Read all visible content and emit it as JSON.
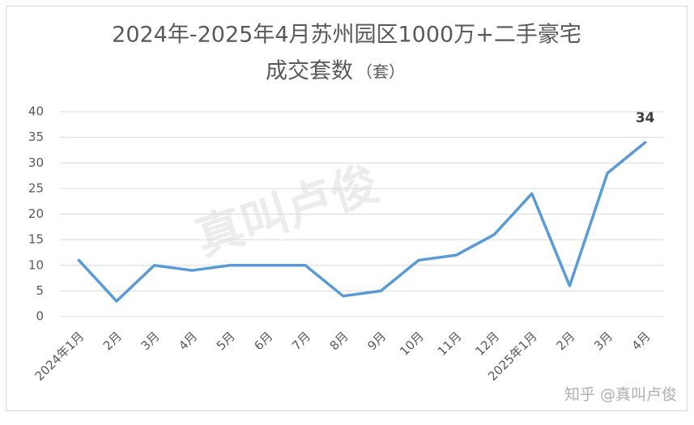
{
  "chart_data": {
    "type": "line",
    "title": "2024年-2025年4月苏州园区1000万+二手豪宅",
    "subtitle": "成交套数",
    "subtitle_unit": "（套）",
    "watermark": "真叫卢俊",
    "credit": "知乎 @真叫卢俊",
    "categories": [
      "2024年1月",
      "2月",
      "3月",
      "4月",
      "5月",
      "6月",
      "7月",
      "8月",
      "9月",
      "10月",
      "11月",
      "12月",
      "2025年1月",
      "2月",
      "3月",
      "4月"
    ],
    "values": [
      11,
      3,
      10,
      9,
      10,
      10,
      10,
      4,
      5,
      11,
      12,
      16,
      24,
      6,
      28,
      34
    ],
    "color": "#5b9bd5",
    "data_labels": "last",
    "ylim": [
      0,
      40
    ],
    "yticks": [
      0,
      5,
      10,
      15,
      20,
      25,
      30,
      35,
      40
    ],
    "grid": true
  }
}
